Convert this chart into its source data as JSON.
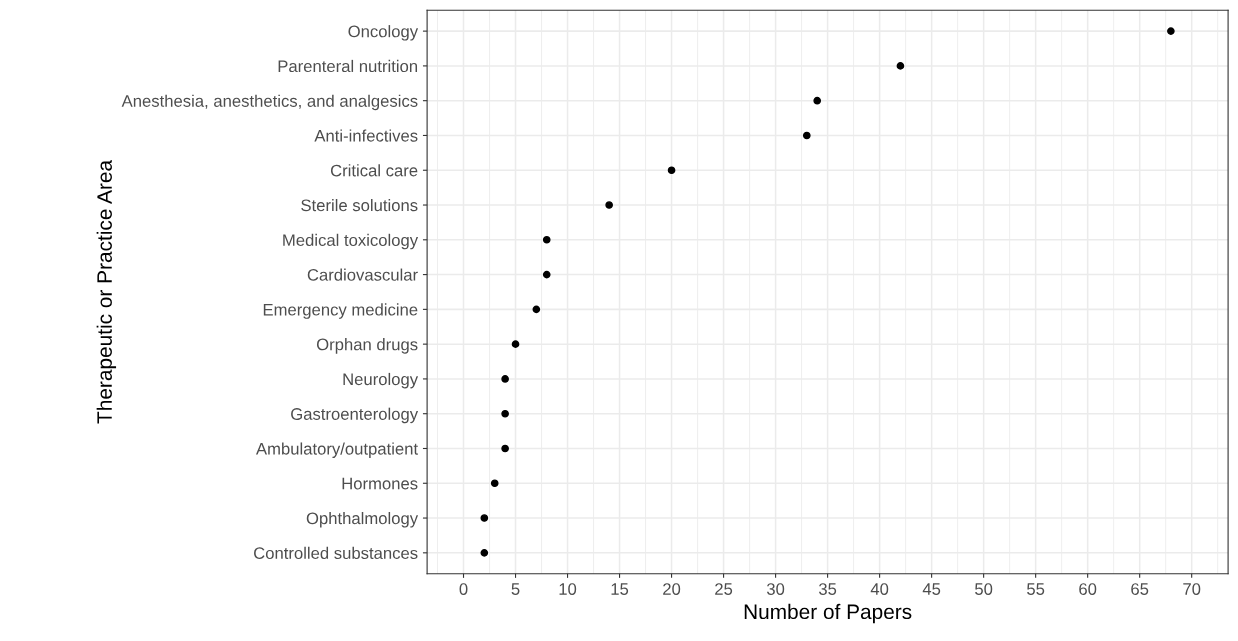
{
  "chart_data": {
    "type": "scatter",
    "orientation": "horizontal",
    "xlabel": "Number of Papers",
    "ylabel": "Therapeutic or Practice Area",
    "categories": [
      "Oncology",
      "Parenteral nutrition",
      "Anesthesia, anesthetics, and analgesics",
      "Anti-infectives",
      "Critical care",
      "Sterile solutions",
      "Medical toxicology",
      "Cardiovascular",
      "Emergency medicine",
      "Orphan drugs",
      "Neurology",
      "Gastroenterology",
      "Ambulatory/outpatient",
      "Hormones",
      "Ophthalmology",
      "Controlled substances"
    ],
    "series": [
      {
        "color": "#000000",
        "values": [
          68,
          42,
          34,
          33,
          20,
          14,
          8,
          8,
          7,
          5,
          4,
          4,
          4,
          3,
          2,
          2
        ]
      }
    ],
    "xlim": [
      -3.5,
      73.5
    ],
    "xticks": [
      0,
      5,
      10,
      15,
      20,
      25,
      30,
      35,
      40,
      45,
      50,
      55,
      60,
      65,
      70
    ],
    "grid": true,
    "marker": "circle"
  }
}
